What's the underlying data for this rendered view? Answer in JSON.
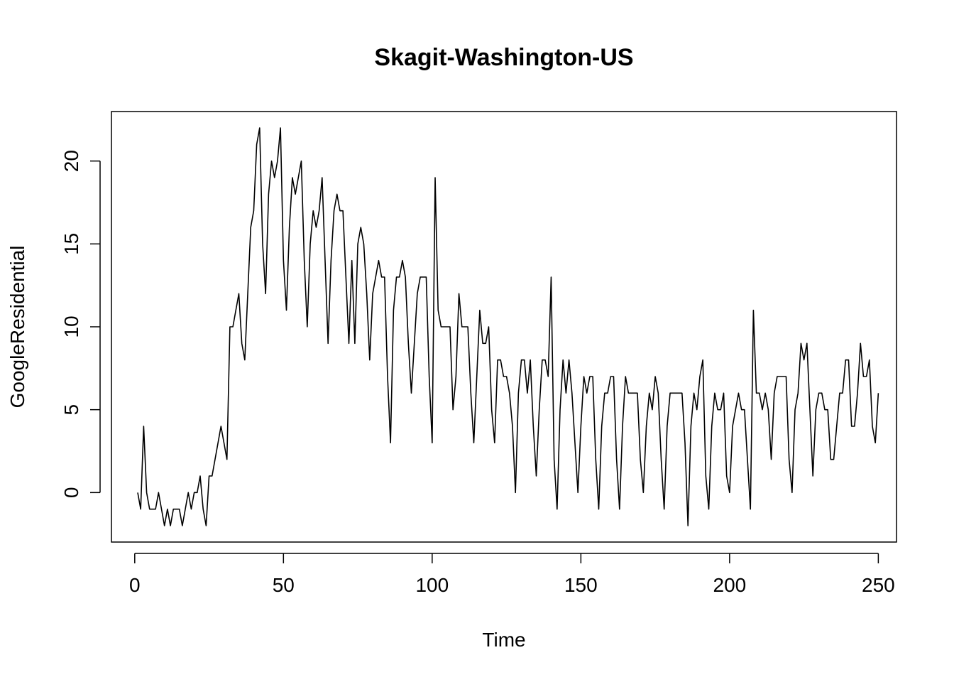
{
  "chart_data": {
    "type": "line",
    "title": "Skagit-Washington-US",
    "xlabel": "Time",
    "ylabel": "GoogleResidential",
    "xlim": [
      1,
      248
    ],
    "ylim": [
      -2,
      22
    ],
    "x_ticks": [
      0,
      50,
      100,
      150,
      200,
      250
    ],
    "y_ticks": [
      0,
      5,
      10,
      15,
      20
    ],
    "grid": false,
    "legend": "none",
    "line_color": "#000000",
    "x_start": 1,
    "series": [
      {
        "values": [
          0,
          -1,
          4,
          0,
          -1,
          -1,
          -1,
          0,
          -1,
          -2,
          -1,
          -2,
          -1,
          -1,
          -1,
          -2,
          -1,
          0,
          -1,
          0,
          0,
          1,
          -1,
          -2,
          1,
          1,
          2,
          3,
          4,
          3,
          2,
          10,
          10,
          11,
          12,
          9,
          8,
          12,
          16,
          17,
          21,
          22,
          15,
          12,
          18,
          20,
          19,
          20,
          22,
          14,
          11,
          16,
          19,
          18,
          19,
          20,
          14,
          10,
          15,
          17,
          16,
          17,
          19,
          14,
          9,
          14,
          17,
          18,
          17,
          17,
          13,
          9,
          14,
          9,
          15,
          16,
          15,
          12,
          8,
          12,
          13,
          14,
          13,
          13,
          7,
          3,
          11,
          13,
          13,
          14,
          13,
          9,
          6,
          9,
          12,
          13,
          13,
          13,
          7,
          3,
          19,
          11,
          10,
          10,
          10,
          10,
          5,
          7,
          12,
          10,
          10,
          10,
          6,
          3,
          7,
          11,
          9,
          9,
          10,
          5,
          3,
          8,
          8,
          7,
          7,
          6,
          4,
          0,
          6,
          8,
          8,
          6,
          8,
          4,
          1,
          5,
          8,
          8,
          7,
          13,
          2,
          -1,
          5,
          8,
          6,
          8,
          6,
          3,
          0,
          4,
          7,
          6,
          7,
          7,
          2,
          -1,
          4,
          6,
          6,
          7,
          7,
          2,
          -1,
          4,
          7,
          6,
          6,
          6,
          6,
          2,
          0,
          4,
          6,
          5,
          7,
          6,
          2,
          -1,
          4,
          6,
          6,
          6,
          6,
          6,
          3,
          -2,
          4,
          6,
          5,
          7,
          8,
          1,
          -1,
          4,
          6,
          5,
          5,
          6,
          1,
          0,
          4,
          5,
          6,
          5,
          5,
          2,
          -1,
          11,
          6,
          6,
          5,
          6,
          5,
          2,
          6,
          7,
          7,
          7,
          7,
          2,
          0,
          5,
          6,
          9,
          8,
          9,
          5,
          1,
          5,
          6,
          6,
          5,
          5,
          2,
          2,
          4,
          6,
          6,
          8,
          8,
          4,
          4,
          6,
          9,
          7,
          7,
          8,
          4,
          3,
          6
        ]
      }
    ]
  }
}
